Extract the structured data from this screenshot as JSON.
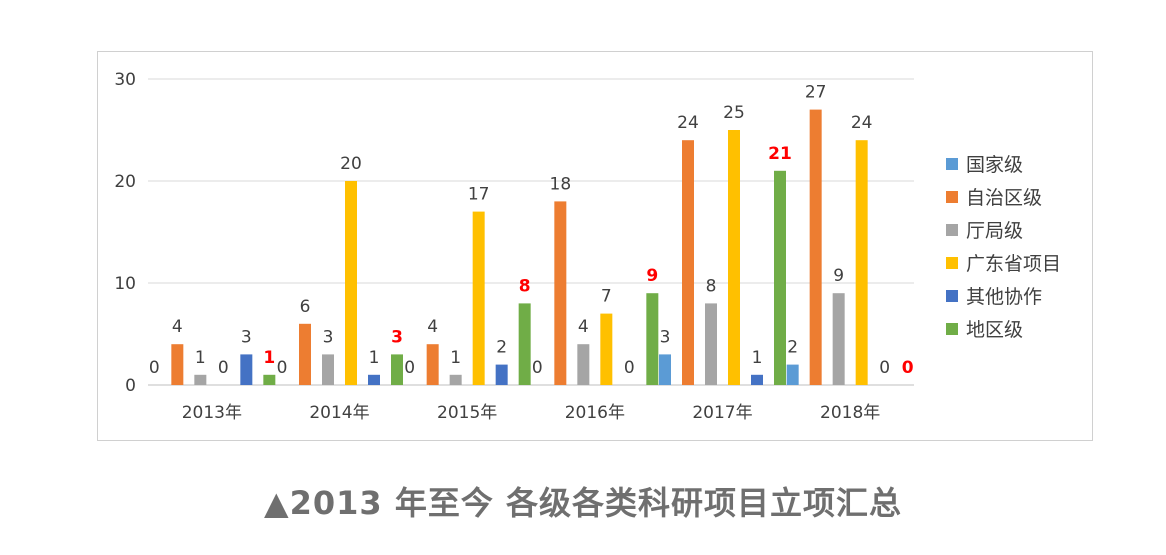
{
  "caption": "▲2013 年至今  各级各类科研项目立项汇总",
  "chart_data": {
    "type": "bar",
    "categories": [
      "2013年",
      "2014年",
      "2015年",
      "2016年",
      "2017年",
      "2018年"
    ],
    "ylim": [
      0,
      30
    ],
    "yticks": [
      0,
      10,
      20,
      30
    ],
    "grid": true,
    "legend_position": "right",
    "series": [
      {
        "name": "国家级",
        "color": "#5B9BD5",
        "values": [
          0,
          0,
          0,
          0,
          3,
          2
        ]
      },
      {
        "name": "自治区级",
        "color": "#ED7D31",
        "values": [
          4,
          6,
          4,
          18,
          24,
          27
        ]
      },
      {
        "name": "厅局级",
        "color": "#A5A5A5",
        "values": [
          1,
          3,
          1,
          4,
          8,
          9
        ]
      },
      {
        "name": "广东省项目",
        "color": "#FFC000",
        "values": [
          0,
          20,
          17,
          7,
          25,
          24
        ]
      },
      {
        "name": "其他协作",
        "color": "#4472C4",
        "values": [
          3,
          1,
          2,
          0,
          1,
          0
        ]
      },
      {
        "name": "地区级",
        "color": "#70AD47",
        "values": [
          1,
          3,
          8,
          9,
          21,
          0
        ]
      }
    ],
    "data_labels": [
      [
        "0",
        "4",
        "1",
        "0",
        "3",
        "1"
      ],
      [
        "0",
        "6",
        "3",
        "20",
        "1",
        "3"
      ],
      [
        "0",
        "4",
        "1",
        "17",
        "2",
        "8"
      ],
      [
        "0",
        "18",
        "4",
        "7",
        "0",
        "9"
      ],
      [
        "3",
        "24",
        "8",
        "25",
        "1",
        "21"
      ],
      [
        "2",
        "27",
        "9",
        "24",
        "0",
        "0"
      ]
    ],
    "highlight_series": "地区级",
    "highlight_color": "#FF0000"
  }
}
